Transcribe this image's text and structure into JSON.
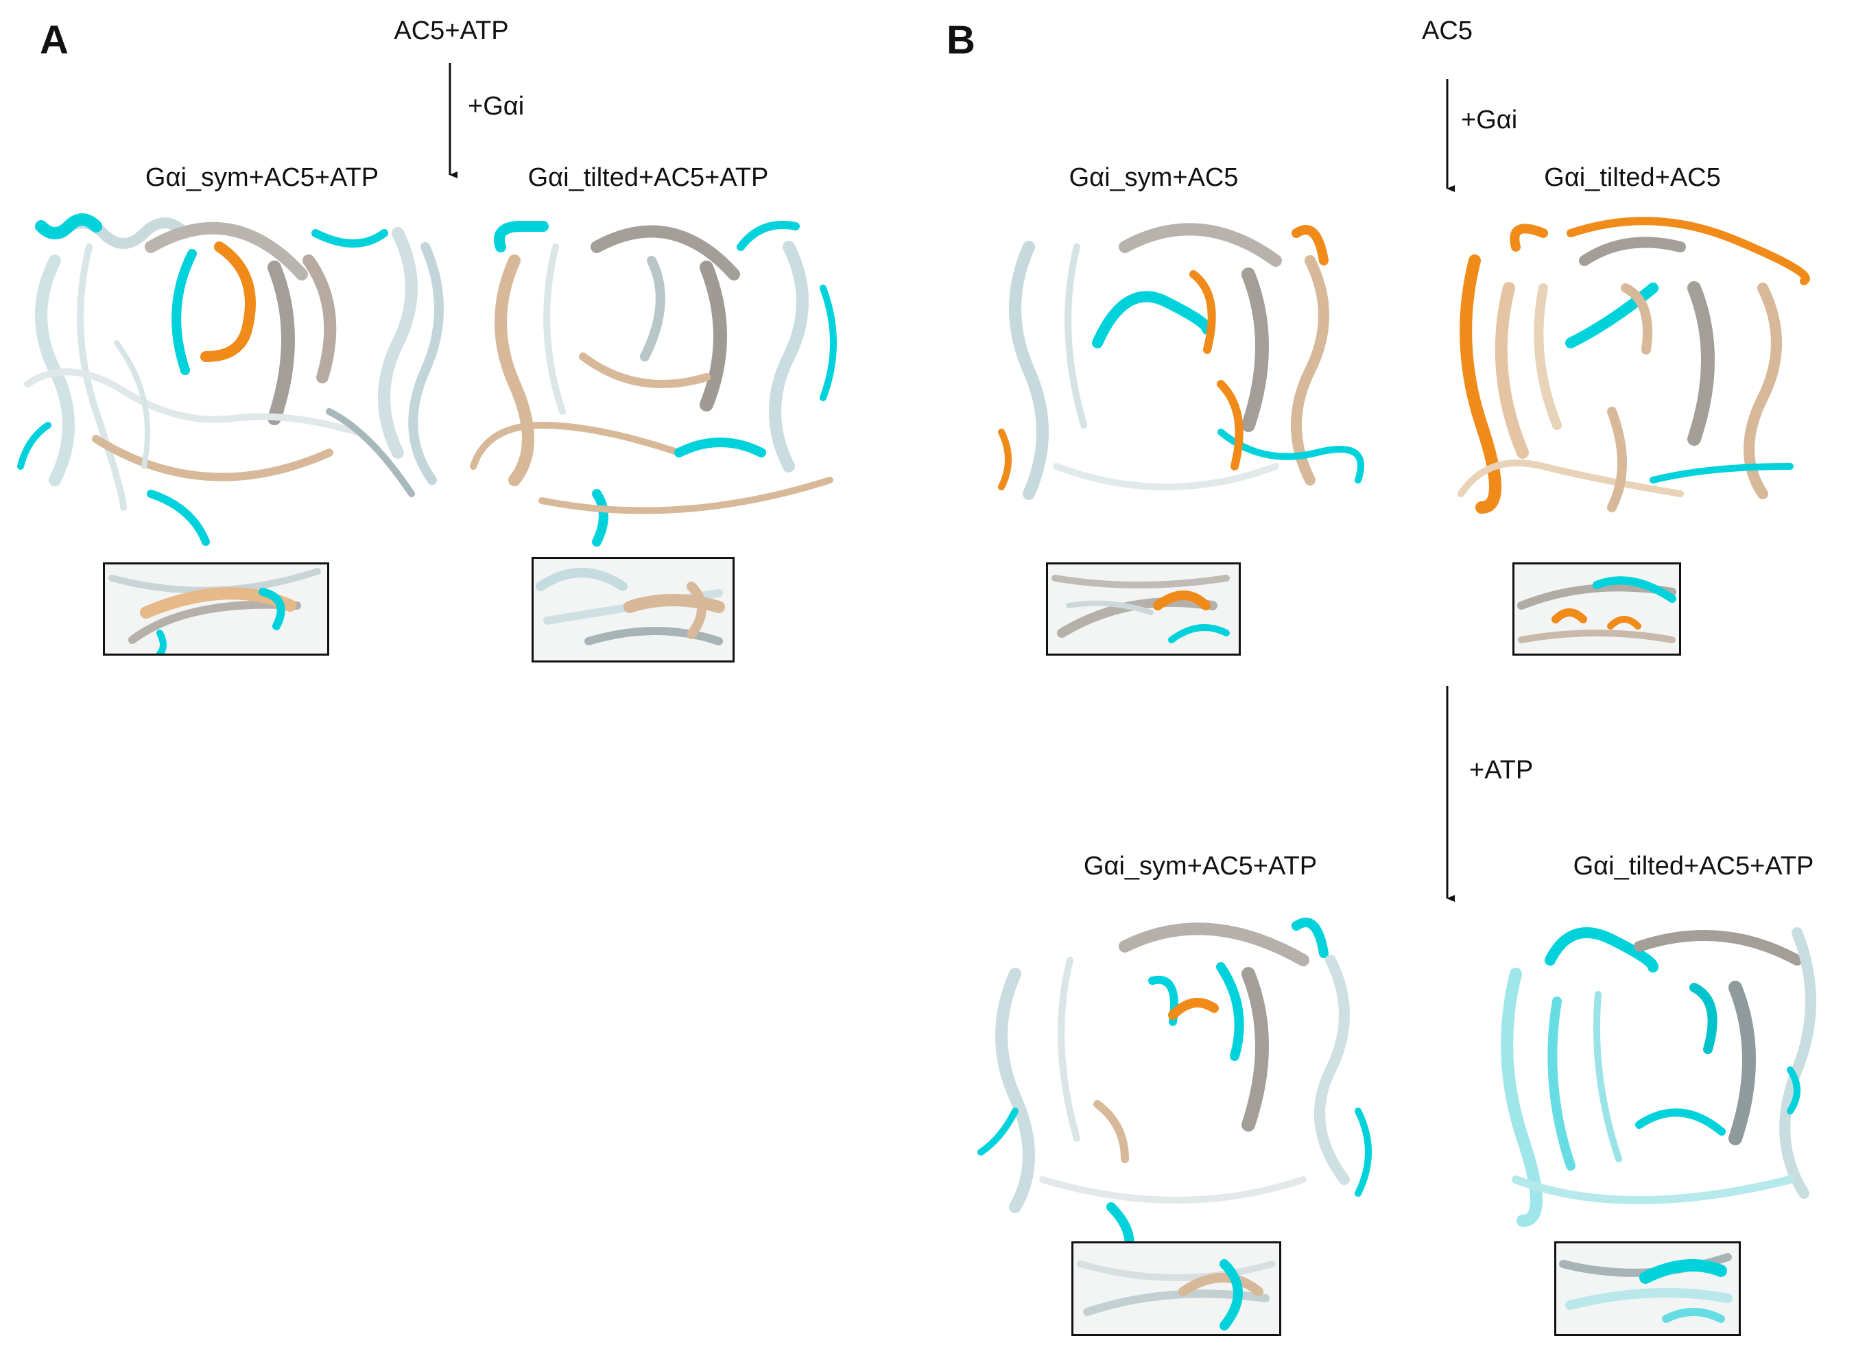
{
  "panel_a": {
    "letter": "A",
    "top_label": "AC5+ATP",
    "arrow_label": "+Gαi",
    "structure_left": "Gαi_sym+AC5+ATP",
    "structure_right": "Gαi_tilted+AC5+ATP"
  },
  "panel_b": {
    "letter": "B",
    "top_label": "AC5",
    "arrow1_label": "+Gαi",
    "structure_top_left": "Gαi_sym+AC5",
    "structure_top_right": "Gαi_tilted+AC5",
    "arrow2_label": "+ATP",
    "structure_bottom_left": "Gαi_sym+AC5+ATP",
    "structure_bottom_right": "Gαi_tilted+AC5+ATP"
  },
  "colors": {
    "cyan": "#00d2dc",
    "orange": "#f08a18",
    "tan": "#d7b99a",
    "light_blue": "#c3dde0",
    "gray": "#a39e98"
  }
}
